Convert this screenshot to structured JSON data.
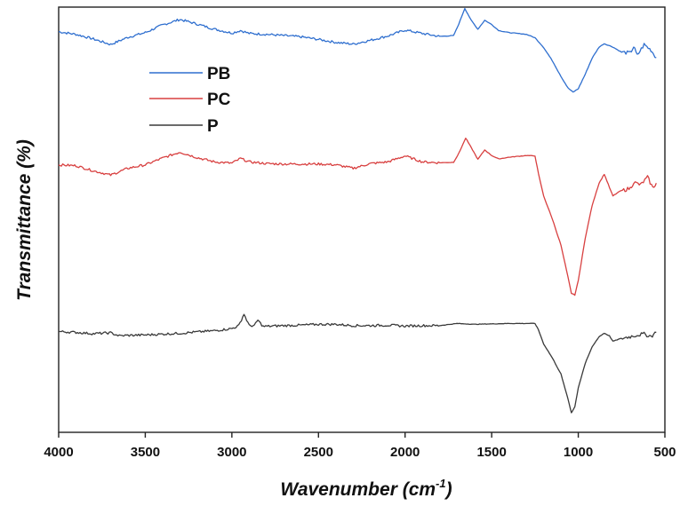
{
  "chart_data": {
    "type": "line",
    "xlabel": "Wavenumber (cm",
    "xlabel_sup": "-1",
    "xlabel_end": ")",
    "ylabel": "Transmittance (%)",
    "xlim": [
      4000,
      500
    ],
    "ylim": [
      0,
      100
    ],
    "x_ticks": [
      "4000",
      "3500",
      "3000",
      "2500",
      "2000",
      "1500",
      "1000",
      "500"
    ],
    "y_ticks_shown": false,
    "grid": false,
    "legend_position": "top-left",
    "series": [
      {
        "name": "PB",
        "color": "#2f6fcf",
        "points": [
          [
            4000,
            94.2
          ],
          [
            3900,
            93.6
          ],
          [
            3800,
            92.5
          ],
          [
            3700,
            91.2
          ],
          [
            3600,
            92.9
          ],
          [
            3500,
            94.0
          ],
          [
            3400,
            95.8
          ],
          [
            3300,
            97.1
          ],
          [
            3200,
            96.0
          ],
          [
            3100,
            94.8
          ],
          [
            3000,
            93.9
          ],
          [
            2950,
            94.5
          ],
          [
            2900,
            93.8
          ],
          [
            2800,
            93.6
          ],
          [
            2700,
            93.3
          ],
          [
            2600,
            93.0
          ],
          [
            2500,
            92.4
          ],
          [
            2400,
            91.7
          ],
          [
            2300,
            91.3
          ],
          [
            2200,
            92.2
          ],
          [
            2100,
            93.2
          ],
          [
            2000,
            94.6
          ],
          [
            1900,
            93.8
          ],
          [
            1800,
            93.1
          ],
          [
            1720,
            93.3
          ],
          [
            1690,
            96.0
          ],
          [
            1655,
            99.7
          ],
          [
            1620,
            97.0
          ],
          [
            1580,
            94.8
          ],
          [
            1540,
            96.9
          ],
          [
            1500,
            95.9
          ],
          [
            1460,
            94.5
          ],
          [
            1400,
            94.0
          ],
          [
            1300,
            93.6
          ],
          [
            1250,
            92.8
          ],
          [
            1200,
            90.5
          ],
          [
            1150,
            87.4
          ],
          [
            1100,
            83.7
          ],
          [
            1060,
            81.0
          ],
          [
            1030,
            80.0
          ],
          [
            1000,
            80.8
          ],
          [
            960,
            84.2
          ],
          [
            920,
            88.0
          ],
          [
            880,
            90.6
          ],
          [
            850,
            91.4
          ],
          [
            800,
            90.6
          ],
          [
            750,
            89.4
          ],
          [
            700,
            89.2
          ],
          [
            680,
            90.7
          ],
          [
            660,
            88.6
          ],
          [
            620,
            91.2
          ],
          [
            580,
            89.9
          ],
          [
            550,
            88.1
          ]
        ]
      },
      {
        "name": "PC",
        "color": "#d84040",
        "points": [
          [
            4000,
            62.9
          ],
          [
            3900,
            62.7
          ],
          [
            3800,
            61.5
          ],
          [
            3700,
            60.5
          ],
          [
            3600,
            62.1
          ],
          [
            3500,
            62.9
          ],
          [
            3400,
            64.5
          ],
          [
            3300,
            65.9
          ],
          [
            3200,
            64.6
          ],
          [
            3100,
            63.6
          ],
          [
            3000,
            63.3
          ],
          [
            2950,
            64.4
          ],
          [
            2900,
            63.6
          ],
          [
            2800,
            63.2
          ],
          [
            2700,
            63.1
          ],
          [
            2600,
            63.1
          ],
          [
            2500,
            63.1
          ],
          [
            2400,
            62.9
          ],
          [
            2300,
            62.1
          ],
          [
            2200,
            63.2
          ],
          [
            2100,
            63.6
          ],
          [
            2000,
            65.0
          ],
          [
            1900,
            63.6
          ],
          [
            1800,
            63.4
          ],
          [
            1720,
            63.5
          ],
          [
            1690,
            65.6
          ],
          [
            1650,
            69.2
          ],
          [
            1610,
            66.4
          ],
          [
            1580,
            64.2
          ],
          [
            1540,
            66.4
          ],
          [
            1500,
            65.1
          ],
          [
            1460,
            64.3
          ],
          [
            1400,
            64.7
          ],
          [
            1300,
            65.1
          ],
          [
            1250,
            65.0
          ],
          [
            1230,
            60.8
          ],
          [
            1200,
            55.6
          ],
          [
            1150,
            50.2
          ],
          [
            1100,
            44.0
          ],
          [
            1060,
            36.6
          ],
          [
            1040,
            32.7
          ],
          [
            1020,
            32.3
          ],
          [
            1000,
            35.7
          ],
          [
            960,
            45.6
          ],
          [
            920,
            53.4
          ],
          [
            880,
            58.6
          ],
          [
            850,
            60.7
          ],
          [
            820,
            57.6
          ],
          [
            800,
            55.6
          ],
          [
            760,
            56.7
          ],
          [
            700,
            57.4
          ],
          [
            680,
            58.8
          ],
          [
            640,
            58.2
          ],
          [
            600,
            60.0
          ],
          [
            570,
            57.5
          ],
          [
            550,
            58.6
          ]
        ]
      },
      {
        "name": "P",
        "color": "#3a3a3a",
        "points": [
          [
            4000,
            23.7
          ],
          [
            3900,
            23.5
          ],
          [
            3800,
            23.2
          ],
          [
            3700,
            23.4
          ],
          [
            3650,
            22.7
          ],
          [
            3600,
            22.8
          ],
          [
            3500,
            22.9
          ],
          [
            3400,
            23.1
          ],
          [
            3300,
            23.3
          ],
          [
            3200,
            23.6
          ],
          [
            3100,
            23.9
          ],
          [
            3000,
            24.4
          ],
          [
            2960,
            25.1
          ],
          [
            2930,
            27.8
          ],
          [
            2900,
            25.1
          ],
          [
            2870,
            25.1
          ],
          [
            2850,
            26.4
          ],
          [
            2820,
            24.9
          ],
          [
            2700,
            25.1
          ],
          [
            2600,
            25.2
          ],
          [
            2500,
            25.4
          ],
          [
            2400,
            25.4
          ],
          [
            2300,
            25.1
          ],
          [
            2200,
            25.1
          ],
          [
            2100,
            25.2
          ],
          [
            2000,
            25.0
          ],
          [
            1900,
            25.1
          ],
          [
            1800,
            25.1
          ],
          [
            1720,
            25.5
          ],
          [
            1700,
            25.6
          ],
          [
            1600,
            25.4
          ],
          [
            1500,
            25.5
          ],
          [
            1400,
            25.6
          ],
          [
            1300,
            25.6
          ],
          [
            1250,
            25.6
          ],
          [
            1230,
            24.1
          ],
          [
            1200,
            20.8
          ],
          [
            1150,
            17.5
          ],
          [
            1100,
            13.7
          ],
          [
            1060,
            7.9
          ],
          [
            1040,
            4.6
          ],
          [
            1020,
            6.0
          ],
          [
            1000,
            10.5
          ],
          [
            960,
            16.2
          ],
          [
            920,
            20.1
          ],
          [
            880,
            22.5
          ],
          [
            850,
            23.3
          ],
          [
            820,
            22.7
          ],
          [
            800,
            21.4
          ],
          [
            760,
            22.0
          ],
          [
            700,
            22.5
          ],
          [
            660,
            22.9
          ],
          [
            620,
            23.1
          ],
          [
            580,
            22.6
          ],
          [
            550,
            23.5
          ]
        ]
      }
    ]
  }
}
